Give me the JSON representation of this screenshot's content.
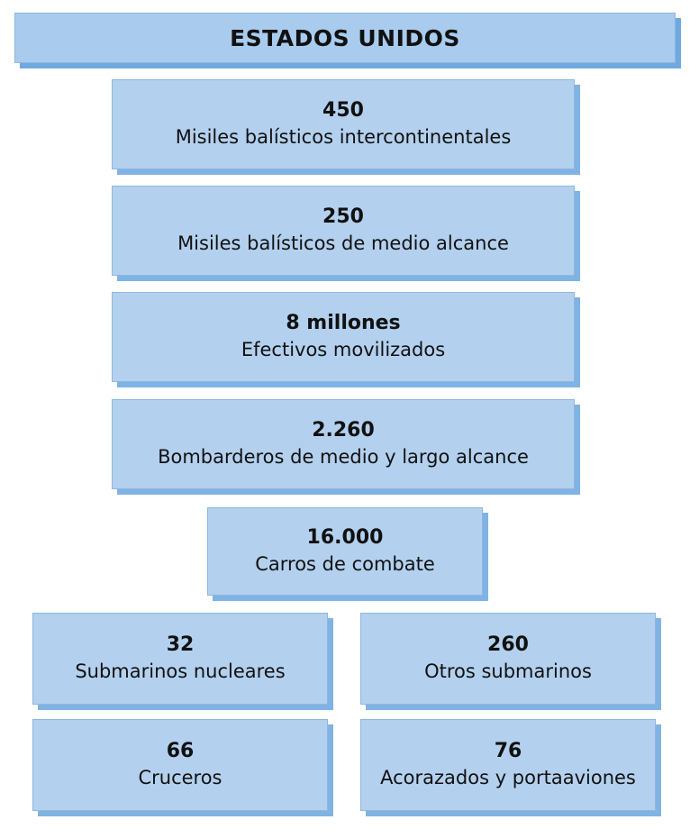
{
  "title": "ESTADOS UNIDOS",
  "stats": [
    {
      "value": "450",
      "label": "Misiles balísticos intercontinentales"
    },
    {
      "value": "250",
      "label": "Misiles balísticos de medio alcance"
    },
    {
      "value": "8 millones",
      "label": "Efectivos movilizados"
    },
    {
      "value": "2.260",
      "label": "Bombarderos de medio y largo alcance"
    },
    {
      "value": "16.000",
      "label": "Carros de combate"
    },
    {
      "value": "32",
      "label": "Submarinos nucleares"
    },
    {
      "value": "260",
      "label": "Otros submarinos"
    },
    {
      "value": "66",
      "label": "Cruceros"
    },
    {
      "value": "76",
      "label": "Acorazados y portaaviones"
    }
  ],
  "colors": {
    "box_fill": "#b3d1ef",
    "box_shadow": "#7fb3e4",
    "title_fill": "#a9ccee"
  }
}
